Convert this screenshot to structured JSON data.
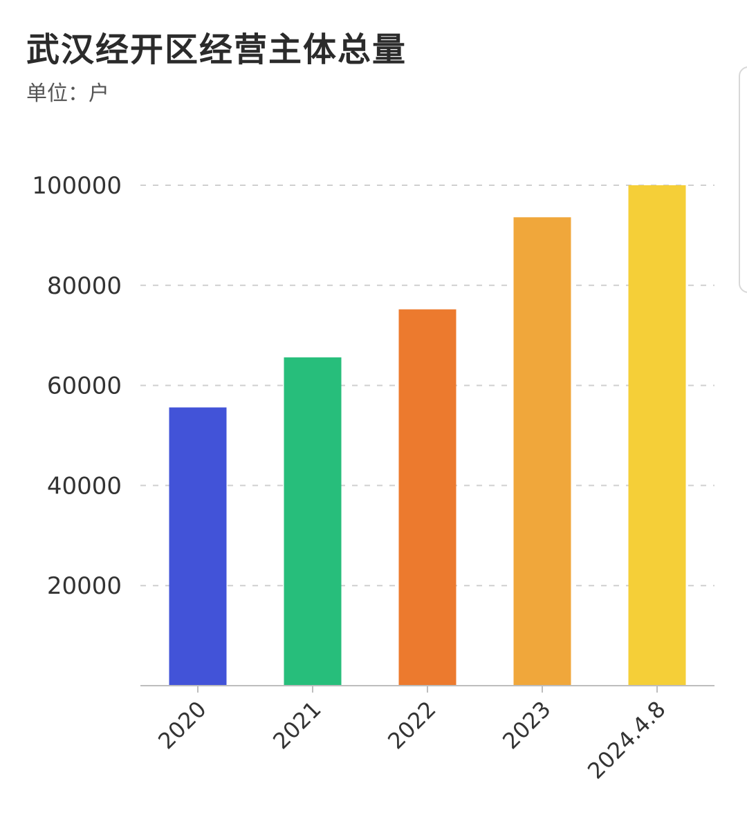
{
  "header": {
    "title": "武汉经开区经营主体总量",
    "unit": "单位：户"
  },
  "chart_data": {
    "type": "bar",
    "title": "武汉经开区经营主体总量",
    "subtitle": "单位：户",
    "categories": [
      "2020",
      "2021",
      "2022",
      "2023",
      "2024.4.8"
    ],
    "values": [
      55600,
      65600,
      75200,
      93600,
      100000
    ],
    "colors": [
      "#4253d8",
      "#27be7b",
      "#ec7a2e",
      "#f0a73b",
      "#f5cf38"
    ],
    "yticks": [
      20000,
      40000,
      60000,
      80000,
      100000
    ],
    "ylim": [
      0,
      100000
    ],
    "grid": true,
    "grid_style": "dashed",
    "legend": false
  }
}
